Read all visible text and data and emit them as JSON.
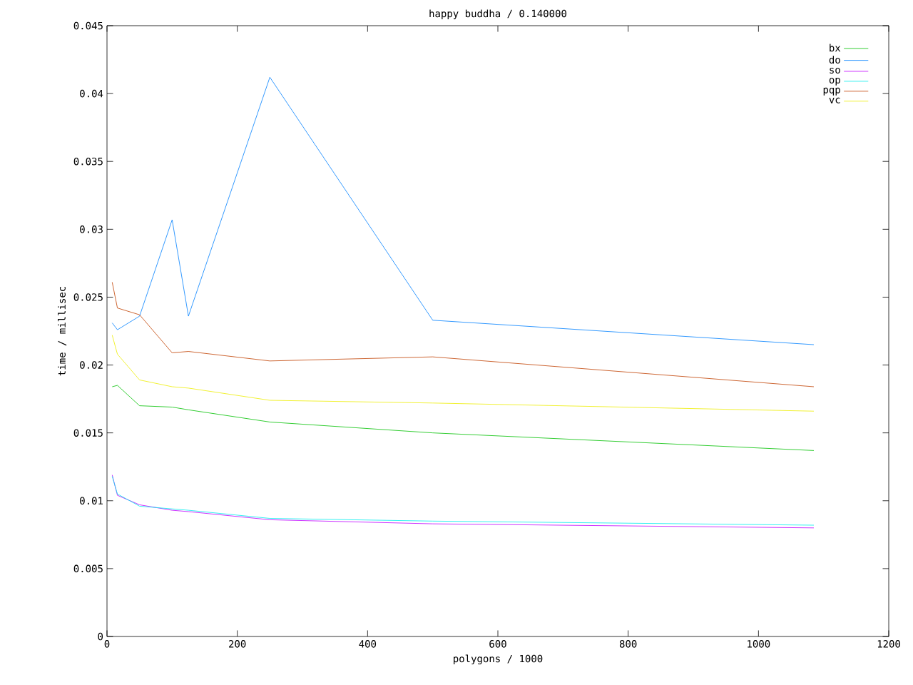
{
  "chart_data": {
    "type": "line",
    "title": "happy buddha / 0.140000",
    "xlabel": "polygons / 1000",
    "ylabel": "time / millisec",
    "xlim": [
      0,
      1200
    ],
    "ylim": [
      0,
      0.045
    ],
    "xticks": [
      0,
      200,
      400,
      600,
      800,
      1000,
      1200
    ],
    "yticks": [
      0,
      0.005,
      0.01,
      0.015,
      0.02,
      0.025,
      0.03,
      0.035,
      0.04,
      0.045
    ],
    "x": [
      8,
      16,
      50,
      100,
      125,
      250,
      500,
      1085
    ],
    "legend": "top right",
    "grid": false,
    "marker": "none",
    "line_style": "solid",
    "series": [
      {
        "name": "bx",
        "color": "#00c000",
        "values": [
          0.0184,
          0.0185,
          0.017,
          0.0169,
          0.0167,
          0.0158,
          0.015,
          0.0137
        ]
      },
      {
        "name": "do",
        "color": "#0080ff",
        "values": [
          0.0231,
          0.0226,
          0.0236,
          0.0307,
          0.0236,
          0.0412,
          0.0233,
          0.0215
        ]
      },
      {
        "name": "so",
        "color": "#c000ff",
        "values": [
          0.0119,
          0.0104,
          0.0097,
          0.0093,
          0.0092,
          0.0086,
          0.0083,
          0.008
        ]
      },
      {
        "name": "op",
        "color": "#00eeee",
        "values": [
          0.0118,
          0.0105,
          0.0096,
          0.0094,
          0.0093,
          0.0087,
          0.0085,
          0.0082
        ]
      },
      {
        "name": "pqp",
        "color": "#c04000",
        "values": [
          0.0261,
          0.0242,
          0.0237,
          0.0209,
          0.021,
          0.0203,
          0.0206,
          0.0184
        ]
      },
      {
        "name": "vc",
        "color": "#eeee00",
        "values": [
          0.0222,
          0.0208,
          0.0189,
          0.0184,
          0.0183,
          0.0174,
          0.0172,
          0.0166
        ]
      }
    ]
  }
}
